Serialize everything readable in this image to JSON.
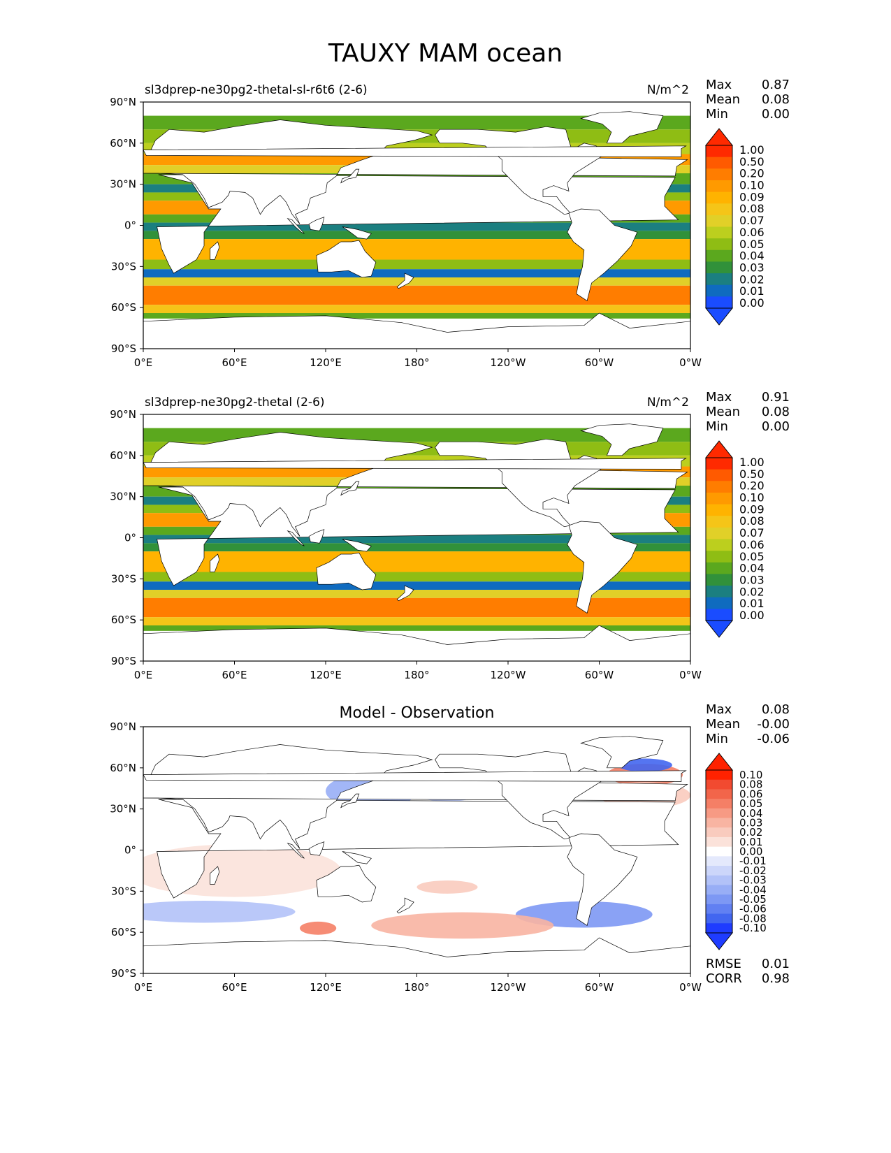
{
  "figure": {
    "title": "TAUXY MAM ocean"
  },
  "chart_data": [
    {
      "type": "heatmap",
      "panel": "test",
      "title": "sl3dprep-ne30pg2-thetal-sl-r6t6 (2-6)",
      "units": "N/m^2",
      "stats": [
        {
          "label": "Max",
          "value": "0.87"
        },
        {
          "label": "Mean",
          "value": "0.08"
        },
        {
          "label": "Min",
          "value": "0.00"
        }
      ],
      "x_ticks": [
        "0°E",
        "60°E",
        "120°E",
        "180°",
        "120°W",
        "60°W",
        "0°W"
      ],
      "y_ticks": [
        "90°N",
        "60°N",
        "30°N",
        "0°",
        "30°S",
        "60°S",
        "90°S"
      ],
      "xlim": [
        0,
        360
      ],
      "ylim": [
        -90,
        90
      ],
      "colorbar": {
        "levels": [
          "1.00",
          "0.50",
          "0.20",
          "0.10",
          "0.09",
          "0.08",
          "0.07",
          "0.06",
          "0.05",
          "0.04",
          "0.03",
          "0.02",
          "0.01",
          "0.00"
        ],
        "colors": [
          "#ff2a00",
          "#ff5a00",
          "#ff7d00",
          "#ff9a00",
          "#ffb300",
          "#f5c518",
          "#e1d028",
          "#bccf1e",
          "#8fbd14",
          "#5ba81e",
          "#31913a",
          "#1b7f80",
          "#0f6bbf",
          "#1a4cff"
        ],
        "extend": "both"
      }
    },
    {
      "type": "heatmap",
      "panel": "reference",
      "title": "sl3dprep-ne30pg2-thetal (2-6)",
      "units": "N/m^2",
      "stats": [
        {
          "label": "Max",
          "value": "0.91"
        },
        {
          "label": "Mean",
          "value": "0.08"
        },
        {
          "label": "Min",
          "value": "0.00"
        }
      ],
      "x_ticks": [
        "0°E",
        "60°E",
        "120°E",
        "180°",
        "120°W",
        "60°W",
        "0°W"
      ],
      "y_ticks": [
        "90°N",
        "60°N",
        "30°N",
        "0°",
        "30°S",
        "60°S",
        "90°S"
      ],
      "xlim": [
        0,
        360
      ],
      "ylim": [
        -90,
        90
      ],
      "colorbar": {
        "levels": [
          "1.00",
          "0.50",
          "0.20",
          "0.10",
          "0.09",
          "0.08",
          "0.07",
          "0.06",
          "0.05",
          "0.04",
          "0.03",
          "0.02",
          "0.01",
          "0.00"
        ],
        "colors": [
          "#ff2a00",
          "#ff5a00",
          "#ff7d00",
          "#ff9a00",
          "#ffb300",
          "#f5c518",
          "#e1d028",
          "#bccf1e",
          "#8fbd14",
          "#5ba81e",
          "#31913a",
          "#1b7f80",
          "#0f6bbf",
          "#1a4cff"
        ],
        "extend": "both"
      }
    },
    {
      "type": "heatmap",
      "panel": "difference",
      "title": "Model - Observation",
      "units": "",
      "stats": [
        {
          "label": "Max",
          "value": "0.08"
        },
        {
          "label": "Mean",
          "value": "-0.00"
        },
        {
          "label": "Min",
          "value": "-0.06"
        }
      ],
      "extra_stats": [
        {
          "label": "RMSE",
          "value": "0.01"
        },
        {
          "label": "CORR",
          "value": "0.98"
        }
      ],
      "x_ticks": [
        "0°E",
        "60°E",
        "120°E",
        "180°",
        "120°W",
        "60°W",
        "0°W"
      ],
      "y_ticks": [
        "90°N",
        "60°N",
        "30°N",
        "0°",
        "30°S",
        "60°S",
        "90°S"
      ],
      "xlim": [
        0,
        360
      ],
      "ylim": [
        -90,
        90
      ],
      "colorbar": {
        "levels": [
          "0.10",
          "0.08",
          "0.06",
          "0.05",
          "0.04",
          "0.03",
          "0.02",
          "0.01",
          "0.00",
          "-0.01",
          "-0.02",
          "-0.03",
          "-0.04",
          "-0.05",
          "-0.06",
          "-0.08",
          "-0.10"
        ],
        "colors": [
          "#ff2200",
          "#f24a30",
          "#f2654a",
          "#f57f66",
          "#f79a84",
          "#f8b4a2",
          "#f9cbbe",
          "#fbe2da",
          "#ffffff",
          "#e4e9fc",
          "#ccd6fa",
          "#b2c2f8",
          "#98aef6",
          "#7d98f4",
          "#6180f2",
          "#4266f0",
          "#1f3cff"
        ],
        "extend": "both"
      }
    }
  ]
}
